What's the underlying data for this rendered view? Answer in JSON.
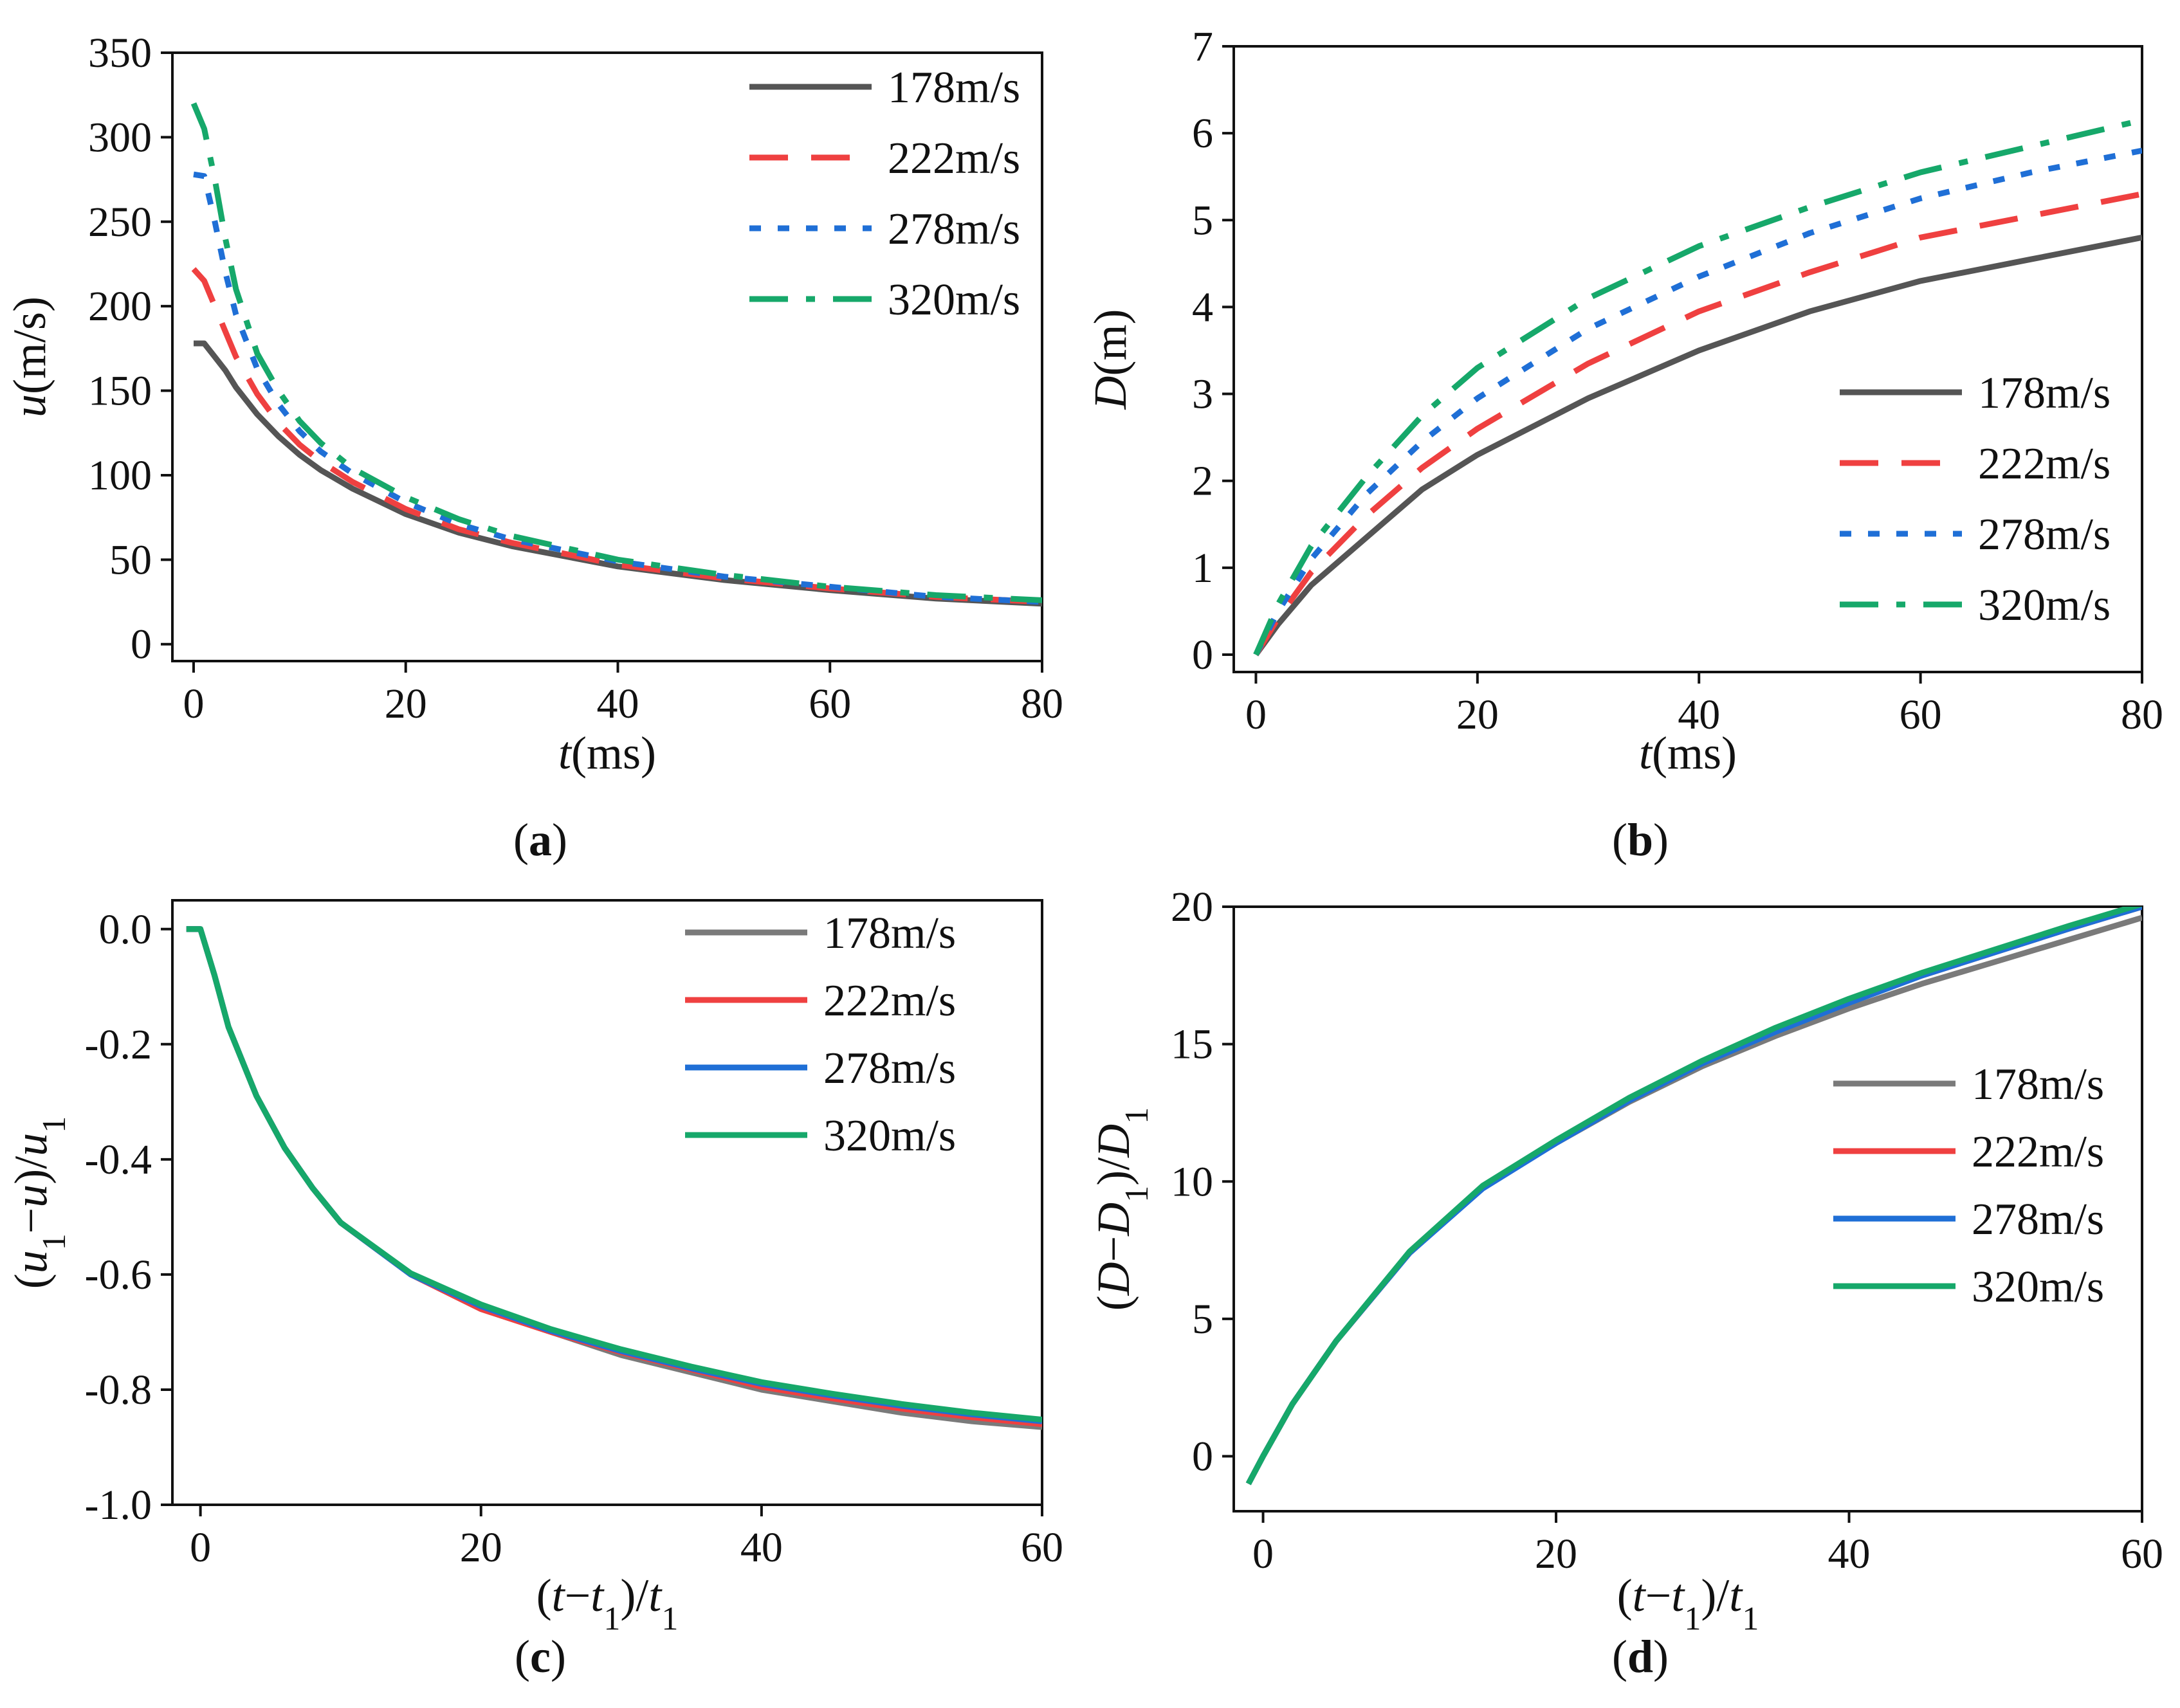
{
  "chart_data": [
    {
      "id": "a",
      "type": "line",
      "caption": "(a)",
      "title": "",
      "xlabel": "t(ms)",
      "ylabel": "u(m/s)",
      "xlim": [
        -2,
        80
      ],
      "ylim": [
        -10,
        350
      ],
      "xticks": [
        0,
        20,
        40,
        60,
        80
      ],
      "yticks": [
        0,
        50,
        100,
        150,
        200,
        250,
        300,
        350
      ],
      "legend_position": "top-right",
      "series": [
        {
          "name": "178m/s",
          "color": "#555555",
          "dash": "solid",
          "x": [
            0,
            1,
            2,
            3,
            4,
            6,
            8,
            10,
            12,
            15,
            20,
            25,
            30,
            40,
            50,
            60,
            70,
            80
          ],
          "y": [
            178,
            178,
            170,
            162,
            152,
            136,
            123,
            112,
            103,
            92,
            77,
            66,
            58,
            46,
            38,
            32,
            27,
            24
          ]
        },
        {
          "name": "222m/s",
          "color": "#ef4040",
          "dash": "dash",
          "x": [
            0,
            1,
            2,
            3,
            4,
            6,
            8,
            10,
            12,
            15,
            20,
            25,
            30,
            40,
            50,
            60,
            70,
            80
          ],
          "y": [
            222,
            215,
            200,
            185,
            170,
            148,
            131,
            118,
            108,
            96,
            80,
            68,
            60,
            47,
            39,
            33,
            28,
            25
          ]
        },
        {
          "name": "278m/s",
          "color": "#1f6fd6",
          "dash": "dot",
          "x": [
            0,
            1,
            2,
            3,
            4,
            6,
            8,
            10,
            12,
            15,
            20,
            25,
            30,
            40,
            50,
            60,
            70,
            80
          ],
          "y": [
            278,
            277,
            250,
            220,
            195,
            163,
            142,
            126,
            114,
            101,
            84,
            71,
            62,
            49,
            40,
            34,
            28,
            25
          ]
        },
        {
          "name": "320m/s",
          "color": "#16a86a",
          "dash": "dashdot",
          "x": [
            0,
            1,
            2,
            3,
            4,
            6,
            8,
            10,
            12,
            15,
            20,
            25,
            30,
            40,
            50,
            60,
            70,
            80
          ],
          "y": [
            320,
            305,
            275,
            240,
            210,
            172,
            150,
            132,
            119,
            104,
            87,
            74,
            64,
            50,
            41,
            34,
            29,
            26
          ]
        }
      ]
    },
    {
      "id": "b",
      "type": "line",
      "caption": "(b)",
      "title": "",
      "xlabel": "t(ms)",
      "ylabel": "D(m)",
      "xlim": [
        -2,
        80
      ],
      "ylim": [
        -0.2,
        7
      ],
      "xticks": [
        0,
        20,
        40,
        60,
        80
      ],
      "yticks": [
        0,
        1,
        2,
        3,
        4,
        5,
        6,
        7
      ],
      "legend_position": "bottom-right",
      "series": [
        {
          "name": "178m/s",
          "color": "#555555",
          "dash": "solid",
          "x": [
            0,
            2,
            5,
            10,
            15,
            20,
            30,
            40,
            50,
            60,
            70,
            80
          ],
          "y": [
            0,
            0.35,
            0.8,
            1.35,
            1.9,
            2.3,
            2.95,
            3.5,
            3.95,
            4.3,
            4.55,
            4.8
          ]
        },
        {
          "name": "222m/s",
          "color": "#ef4040",
          "dash": "dash",
          "x": [
            0,
            2,
            5,
            10,
            15,
            20,
            30,
            40,
            50,
            60,
            70,
            80
          ],
          "y": [
            0,
            0.42,
            0.95,
            1.6,
            2.15,
            2.6,
            3.35,
            3.95,
            4.4,
            4.8,
            5.05,
            5.3
          ]
        },
        {
          "name": "278m/s",
          "color": "#1f6fd6",
          "dash": "dot",
          "x": [
            0,
            2,
            5,
            10,
            15,
            20,
            30,
            40,
            50,
            60,
            70,
            80
          ],
          "y": [
            0,
            0.5,
            1.1,
            1.85,
            2.45,
            2.95,
            3.75,
            4.35,
            4.85,
            5.25,
            5.55,
            5.8
          ]
        },
        {
          "name": "320m/s",
          "color": "#16a86a",
          "dash": "dashdot",
          "x": [
            0,
            2,
            5,
            10,
            15,
            20,
            30,
            40,
            50,
            60,
            70,
            80
          ],
          "y": [
            0,
            0.58,
            1.25,
            2.05,
            2.75,
            3.3,
            4.1,
            4.7,
            5.15,
            5.55,
            5.85,
            6.15
          ]
        }
      ]
    },
    {
      "id": "c",
      "type": "line",
      "caption": "(c)",
      "title": "",
      "xlabel": "(t−t1)/t1",
      "ylabel": "(u1−u)/u1",
      "xlim": [
        -2,
        60
      ],
      "ylim": [
        -1.0,
        0.05
      ],
      "xticks": [
        0,
        20,
        40,
        60
      ],
      "yticks": [
        0.0,
        -0.2,
        -0.4,
        -0.6,
        -0.8,
        -1.0
      ],
      "ytick_labels": [
        "0.0",
        "-0.2",
        "-0.4",
        "-0.6",
        "-0.8",
        "-1.0"
      ],
      "legend_position": "top-right",
      "series": [
        {
          "name": "178m/s",
          "color": "#7a7a7a",
          "dash": "solid",
          "x": [
            -1,
            0,
            1,
            2,
            4,
            6,
            8,
            10,
            15,
            20,
            25,
            30,
            35,
            40,
            45,
            50,
            55,
            60
          ],
          "y": [
            0,
            0,
            -0.08,
            -0.17,
            -0.29,
            -0.38,
            -0.45,
            -0.51,
            -0.6,
            -0.66,
            -0.7,
            -0.74,
            -0.77,
            -0.8,
            -0.82,
            -0.84,
            -0.855,
            -0.865
          ]
        },
        {
          "name": "222m/s",
          "color": "#ef4040",
          "dash": "solid",
          "x": [
            -1,
            0,
            1,
            2,
            4,
            6,
            8,
            10,
            15,
            20,
            25,
            30,
            35,
            40,
            45,
            50,
            55,
            60
          ],
          "y": [
            0,
            0,
            -0.08,
            -0.17,
            -0.29,
            -0.38,
            -0.45,
            -0.51,
            -0.6,
            -0.66,
            -0.7,
            -0.735,
            -0.765,
            -0.795,
            -0.815,
            -0.833,
            -0.848,
            -0.86
          ]
        },
        {
          "name": "278m/s",
          "color": "#1f6fd6",
          "dash": "solid",
          "x": [
            -1,
            0,
            1,
            2,
            4,
            6,
            8,
            10,
            15,
            20,
            25,
            30,
            35,
            40,
            45,
            50,
            55,
            60
          ],
          "y": [
            0,
            0,
            -0.08,
            -0.17,
            -0.29,
            -0.38,
            -0.45,
            -0.51,
            -0.6,
            -0.655,
            -0.698,
            -0.733,
            -0.763,
            -0.79,
            -0.81,
            -0.828,
            -0.843,
            -0.855
          ]
        },
        {
          "name": "320m/s",
          "color": "#16a86a",
          "dash": "solid",
          "x": [
            -1,
            0,
            1,
            2,
            4,
            6,
            8,
            10,
            15,
            20,
            25,
            30,
            35,
            40,
            45,
            50,
            55,
            60
          ],
          "y": [
            0,
            0,
            -0.08,
            -0.17,
            -0.29,
            -0.38,
            -0.45,
            -0.51,
            -0.598,
            -0.652,
            -0.695,
            -0.73,
            -0.76,
            -0.787,
            -0.807,
            -0.825,
            -0.84,
            -0.852
          ]
        }
      ]
    },
    {
      "id": "d",
      "type": "line",
      "caption": "(d)",
      "title": "",
      "xlabel": "(t−t1)/t1",
      "ylabel": "(D−D1)/D1",
      "xlim": [
        -2,
        60
      ],
      "ylim": [
        -2,
        20
      ],
      "xticks": [
        0,
        20,
        40,
        60
      ],
      "yticks": [
        0,
        5,
        10,
        15,
        20
      ],
      "legend_position": "right",
      "series": [
        {
          "name": "178m/s",
          "color": "#7a7a7a",
          "dash": "solid",
          "x": [
            -1,
            0,
            2,
            5,
            10,
            15,
            20,
            25,
            30,
            35,
            40,
            45,
            50,
            55,
            60
          ],
          "y": [
            -1,
            0,
            1.9,
            4.2,
            7.4,
            9.8,
            11.4,
            12.9,
            14.2,
            15.3,
            16.3,
            17.2,
            18.0,
            18.8,
            19.6
          ]
        },
        {
          "name": "222m/s",
          "color": "#ef4040",
          "dash": "solid",
          "x": [
            -1,
            0,
            2,
            5,
            10,
            15,
            20,
            25,
            30,
            35,
            40,
            45,
            50,
            55,
            60
          ],
          "y": [
            -1,
            0,
            1.9,
            4.2,
            7.4,
            9.8,
            11.45,
            13.0,
            14.35,
            15.5,
            16.55,
            17.5,
            18.35,
            19.2,
            20.0
          ]
        },
        {
          "name": "278m/s",
          "color": "#1f6fd6",
          "dash": "solid",
          "x": [
            -1,
            0,
            2,
            5,
            10,
            15,
            20,
            25,
            30,
            35,
            40,
            45,
            50,
            55,
            60
          ],
          "y": [
            -1,
            0,
            1.9,
            4.2,
            7.4,
            9.75,
            11.4,
            12.95,
            14.3,
            15.45,
            16.5,
            17.5,
            18.35,
            19.2,
            20.0
          ]
        },
        {
          "name": "320m/s",
          "color": "#16a86a",
          "dash": "solid",
          "x": [
            -1,
            0,
            2,
            5,
            10,
            15,
            20,
            25,
            30,
            35,
            40,
            45,
            50,
            55,
            60
          ],
          "y": [
            -1,
            0,
            1.9,
            4.2,
            7.45,
            9.85,
            11.5,
            13.05,
            14.4,
            15.6,
            16.65,
            17.6,
            18.45,
            19.3,
            20.1
          ]
        }
      ]
    }
  ]
}
